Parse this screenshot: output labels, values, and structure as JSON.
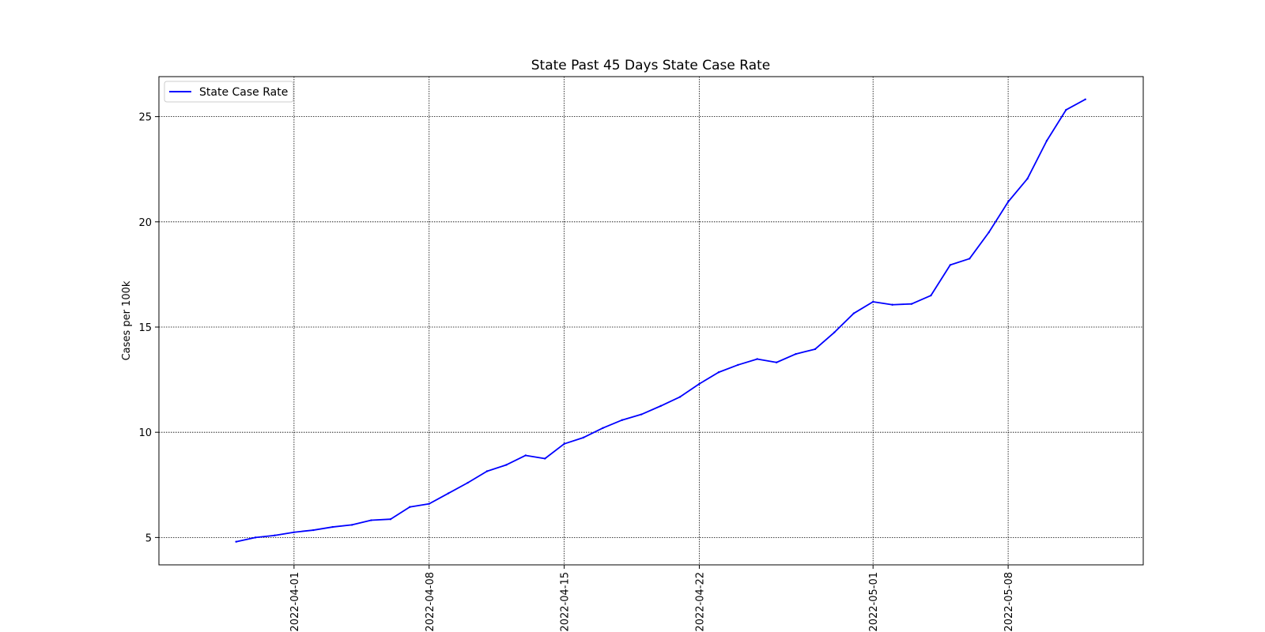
{
  "chart_data": {
    "type": "line",
    "title": "State Past 45 Days State Case Rate",
    "xlabel": "",
    "ylabel": "Cases per 100k",
    "x_is_date": true,
    "xlim": [
      "2022-03-25",
      "2022-05-15"
    ],
    "ylim": [
      3.7,
      26.9
    ],
    "x_ticks": [
      "2022-04-01",
      "2022-04-08",
      "2022-04-15",
      "2022-04-22",
      "2022-05-01",
      "2022-05-08"
    ],
    "y_ticks": [
      5,
      10,
      15,
      20,
      25
    ],
    "grid": true,
    "grid_style": "dotted",
    "legend_position": "upper left",
    "series": [
      {
        "name": "State Case Rate",
        "color": "#0000ff",
        "x": [
          "2022-03-29",
          "2022-03-30",
          "2022-03-31",
          "2022-04-01",
          "2022-04-02",
          "2022-04-03",
          "2022-04-04",
          "2022-04-05",
          "2022-04-06",
          "2022-04-07",
          "2022-04-08",
          "2022-04-09",
          "2022-04-10",
          "2022-04-11",
          "2022-04-12",
          "2022-04-13",
          "2022-04-14",
          "2022-04-15",
          "2022-04-16",
          "2022-04-17",
          "2022-04-18",
          "2022-04-19",
          "2022-04-20",
          "2022-04-21",
          "2022-04-22",
          "2022-04-23",
          "2022-04-24",
          "2022-04-25",
          "2022-04-26",
          "2022-04-27",
          "2022-04-28",
          "2022-04-29",
          "2022-04-30",
          "2022-05-01",
          "2022-05-02",
          "2022-05-03",
          "2022-05-04",
          "2022-05-05",
          "2022-05-06",
          "2022-05-07",
          "2022-05-08",
          "2022-05-09",
          "2022-05-10",
          "2022-05-11",
          "2022-05-12"
        ],
        "values": [
          4.8,
          5.0,
          5.1,
          5.25,
          5.35,
          5.5,
          5.6,
          5.82,
          5.87,
          6.45,
          6.6,
          7.1,
          7.6,
          8.15,
          8.45,
          8.9,
          8.75,
          9.45,
          9.75,
          10.2,
          10.58,
          10.85,
          11.25,
          11.68,
          12.3,
          12.85,
          13.2,
          13.48,
          13.32,
          13.72,
          13.95,
          14.75,
          15.65,
          16.2,
          16.06,
          16.1,
          16.5,
          17.95,
          18.25,
          19.5,
          20.95,
          22.05,
          23.85,
          25.32,
          25.82
        ]
      }
    ]
  }
}
